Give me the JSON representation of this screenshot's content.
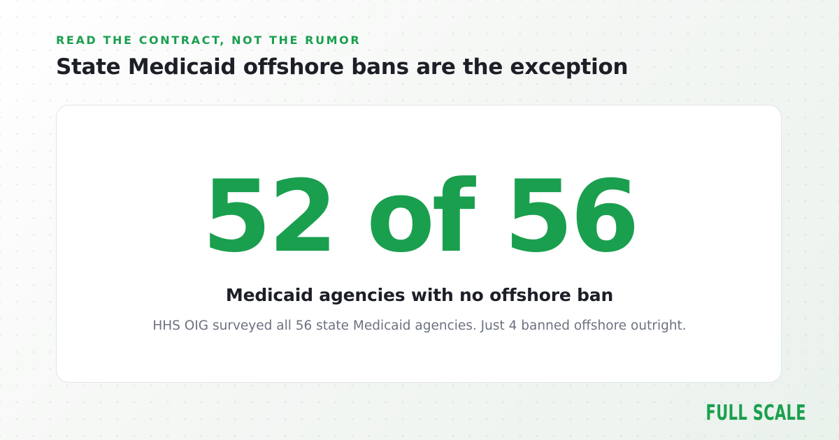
{
  "eyebrow": "READ THE CONTRACT, NOT THE RUMOR",
  "headline": "State Medicaid offshore bans are the exception",
  "stat": {
    "value": "52 of 56",
    "label": "Medicaid agencies with no offshore ban",
    "note": "HHS OIG surveyed all 56 state Medicaid agencies. Just 4 banned offshore outright."
  },
  "brand": "FULL SCALE",
  "colors": {
    "accent": "#1a9f4e",
    "text_dark": "#1c1f26",
    "text_muted": "#6b7280",
    "card_bg": "#ffffff"
  }
}
